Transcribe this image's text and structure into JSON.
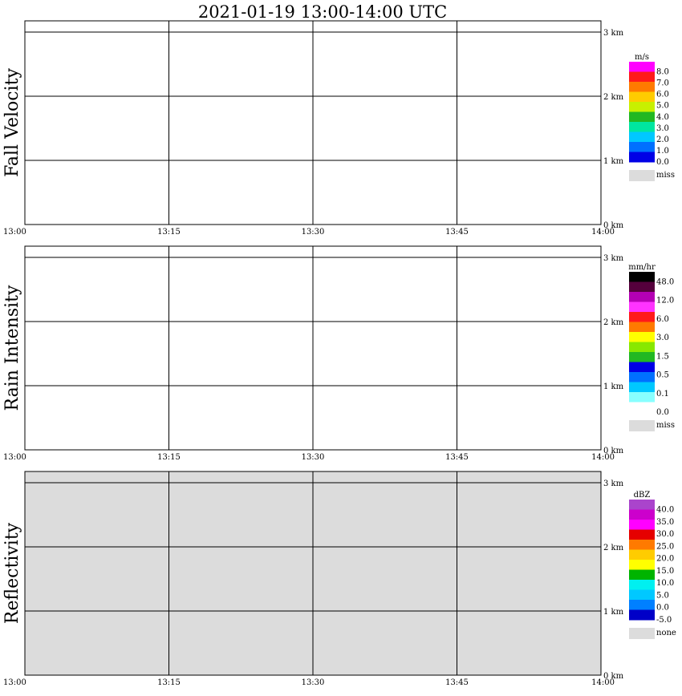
{
  "title": "2021-01-19   13:00-14:00 UTC",
  "chart_data": [
    {
      "type": "heatmap",
      "name": "Fall Velocity",
      "x_ticks": [
        "13:00",
        "13:15",
        "13:30",
        "13:45",
        "14:00"
      ],
      "y_ticks": [
        "0 km",
        "1 km",
        "2 km",
        "3 km"
      ],
      "colorbar": {
        "unit": "m/s",
        "labels": [
          "8.0",
          "7.0",
          "6.0",
          "5.0",
          "4.0",
          "3.0",
          "2.0",
          "1.0",
          "0.0"
        ],
        "colors": [
          "#ff00ff",
          "#ff1a1a",
          "#ff7a00",
          "#ffcc00",
          "#c8f000",
          "#22b822",
          "#00e6a0",
          "#00c8ff",
          "#0070ff",
          "#0000e6"
        ],
        "miss_label": "miss",
        "miss_color": "#dcdcdc"
      },
      "background": "#ffffff"
    },
    {
      "type": "heatmap",
      "name": "Rain Intensity",
      "x_ticks": [
        "13:00",
        "13:15",
        "13:30",
        "13:45",
        "14:00"
      ],
      "y_ticks": [
        "0 km",
        "1 km",
        "2 km",
        "3 km"
      ],
      "colorbar": {
        "unit": "mm/hr",
        "labels": [
          "48.0",
          "12.0",
          "6.0",
          "3.0",
          "1.5",
          "0.5",
          "0.1",
          "0.0"
        ],
        "colors": [
          "#000000",
          "#55003c",
          "#b400b4",
          "#ff33ff",
          "#ff1a1a",
          "#ff7a00",
          "#ffff00",
          "#88e800",
          "#22b822",
          "#0000e6",
          "#0070ff",
          "#00c8ff",
          "#88ffff",
          "#ffffff"
        ],
        "miss_label": "miss",
        "miss_color": "#dcdcdc"
      },
      "background": "#ffffff"
    },
    {
      "type": "heatmap",
      "name": "Reflectivity",
      "x_ticks": [
        "13:00",
        "13:15",
        "13:30",
        "13:45",
        "14:00"
      ],
      "y_ticks": [
        "0 km",
        "1 km",
        "2 km",
        "3 km"
      ],
      "colorbar": {
        "unit": "dBZ",
        "labels": [
          "40.0",
          "35.0",
          "30.0",
          "25.0",
          "20.0",
          "15.0",
          "10.0",
          "5.0",
          "0.0",
          "-5.0"
        ],
        "colors": [
          "#aa44cc",
          "#cc00cc",
          "#ff00ff",
          "#e60000",
          "#ff7a00",
          "#ffcc00",
          "#ffff00",
          "#00b400",
          "#00f0f0",
          "#00c8ff",
          "#0080ff",
          "#0000c8"
        ],
        "miss_label": "none",
        "miss_color": "#dcdcdc"
      },
      "background": "#dcdcdc"
    }
  ]
}
